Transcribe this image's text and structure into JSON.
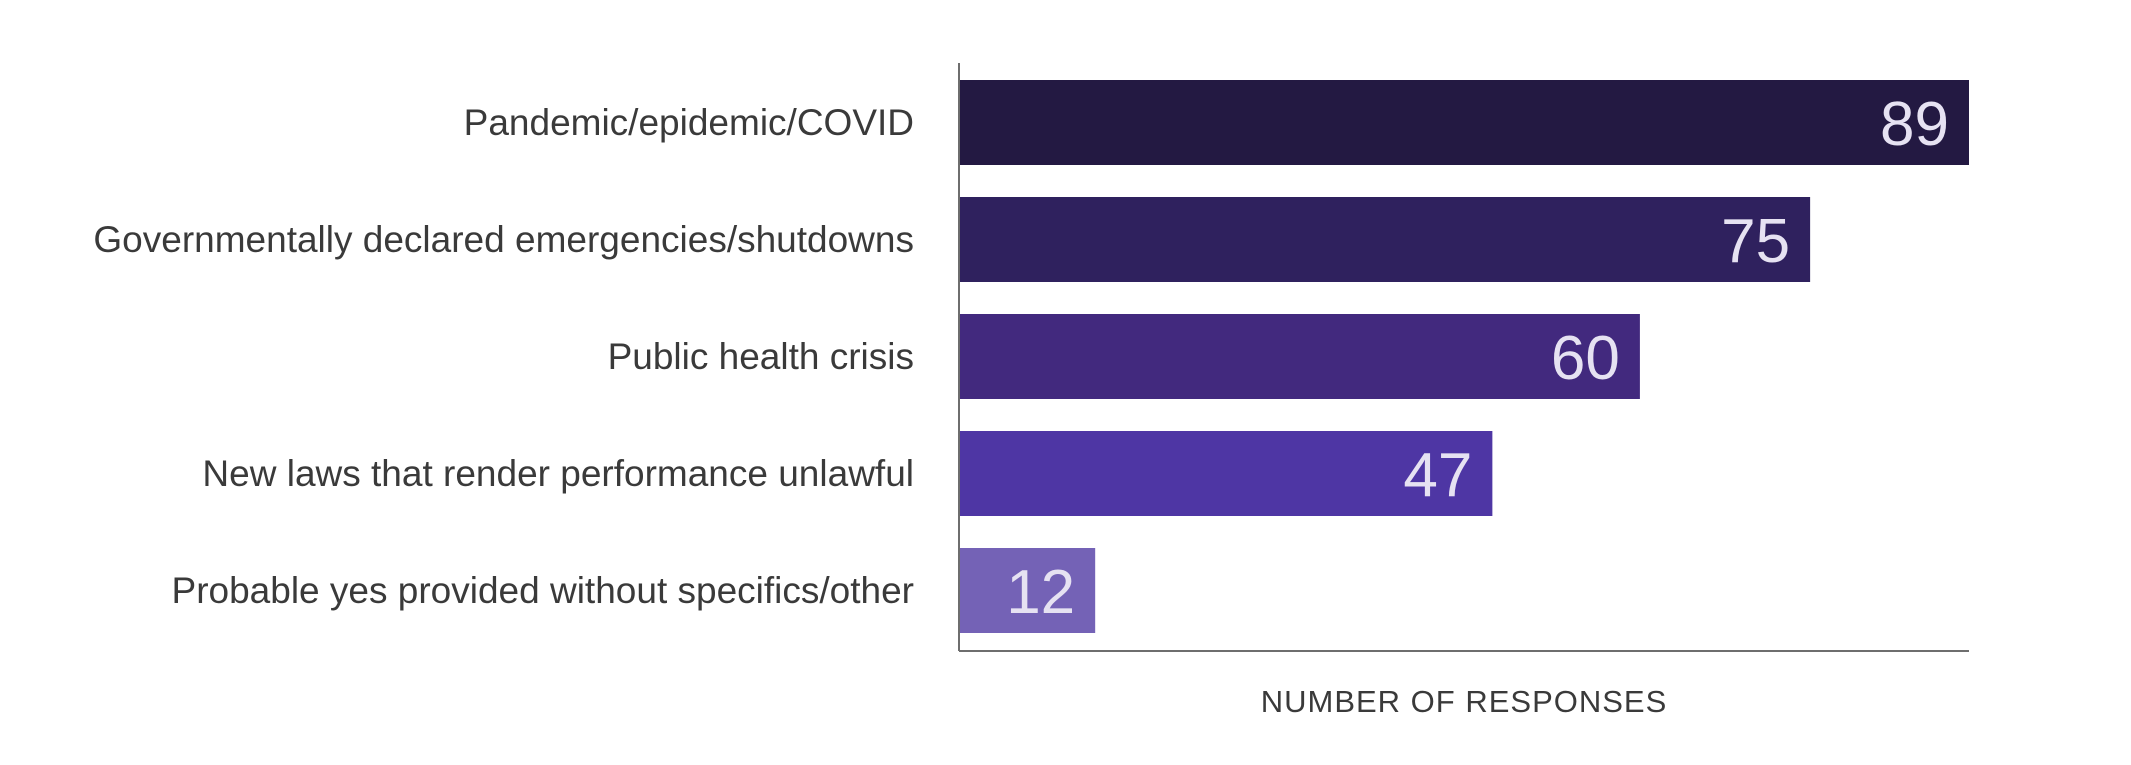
{
  "chart_data": {
    "type": "bar",
    "orientation": "horizontal",
    "categories": [
      "Pandemic/epidemic/COVID",
      "Governmentally declared emergencies/shutdowns",
      "Public health crisis",
      "New laws that render performance unlawful",
      "Probable yes provided without specifics/other"
    ],
    "values": [
      89,
      75,
      60,
      47,
      12
    ],
    "xlabel": "NUMBER OF RESPONSES",
    "ylabel": "",
    "xlim": [
      0,
      89
    ],
    "grid": false,
    "legend": "none",
    "colors": [
      "#231942",
      "#2f215e",
      "#42297e",
      "#4e36a4",
      "#7462b6"
    ],
    "value_label_color": "#e6e2f2",
    "axis_color": "#6e6e6e"
  }
}
